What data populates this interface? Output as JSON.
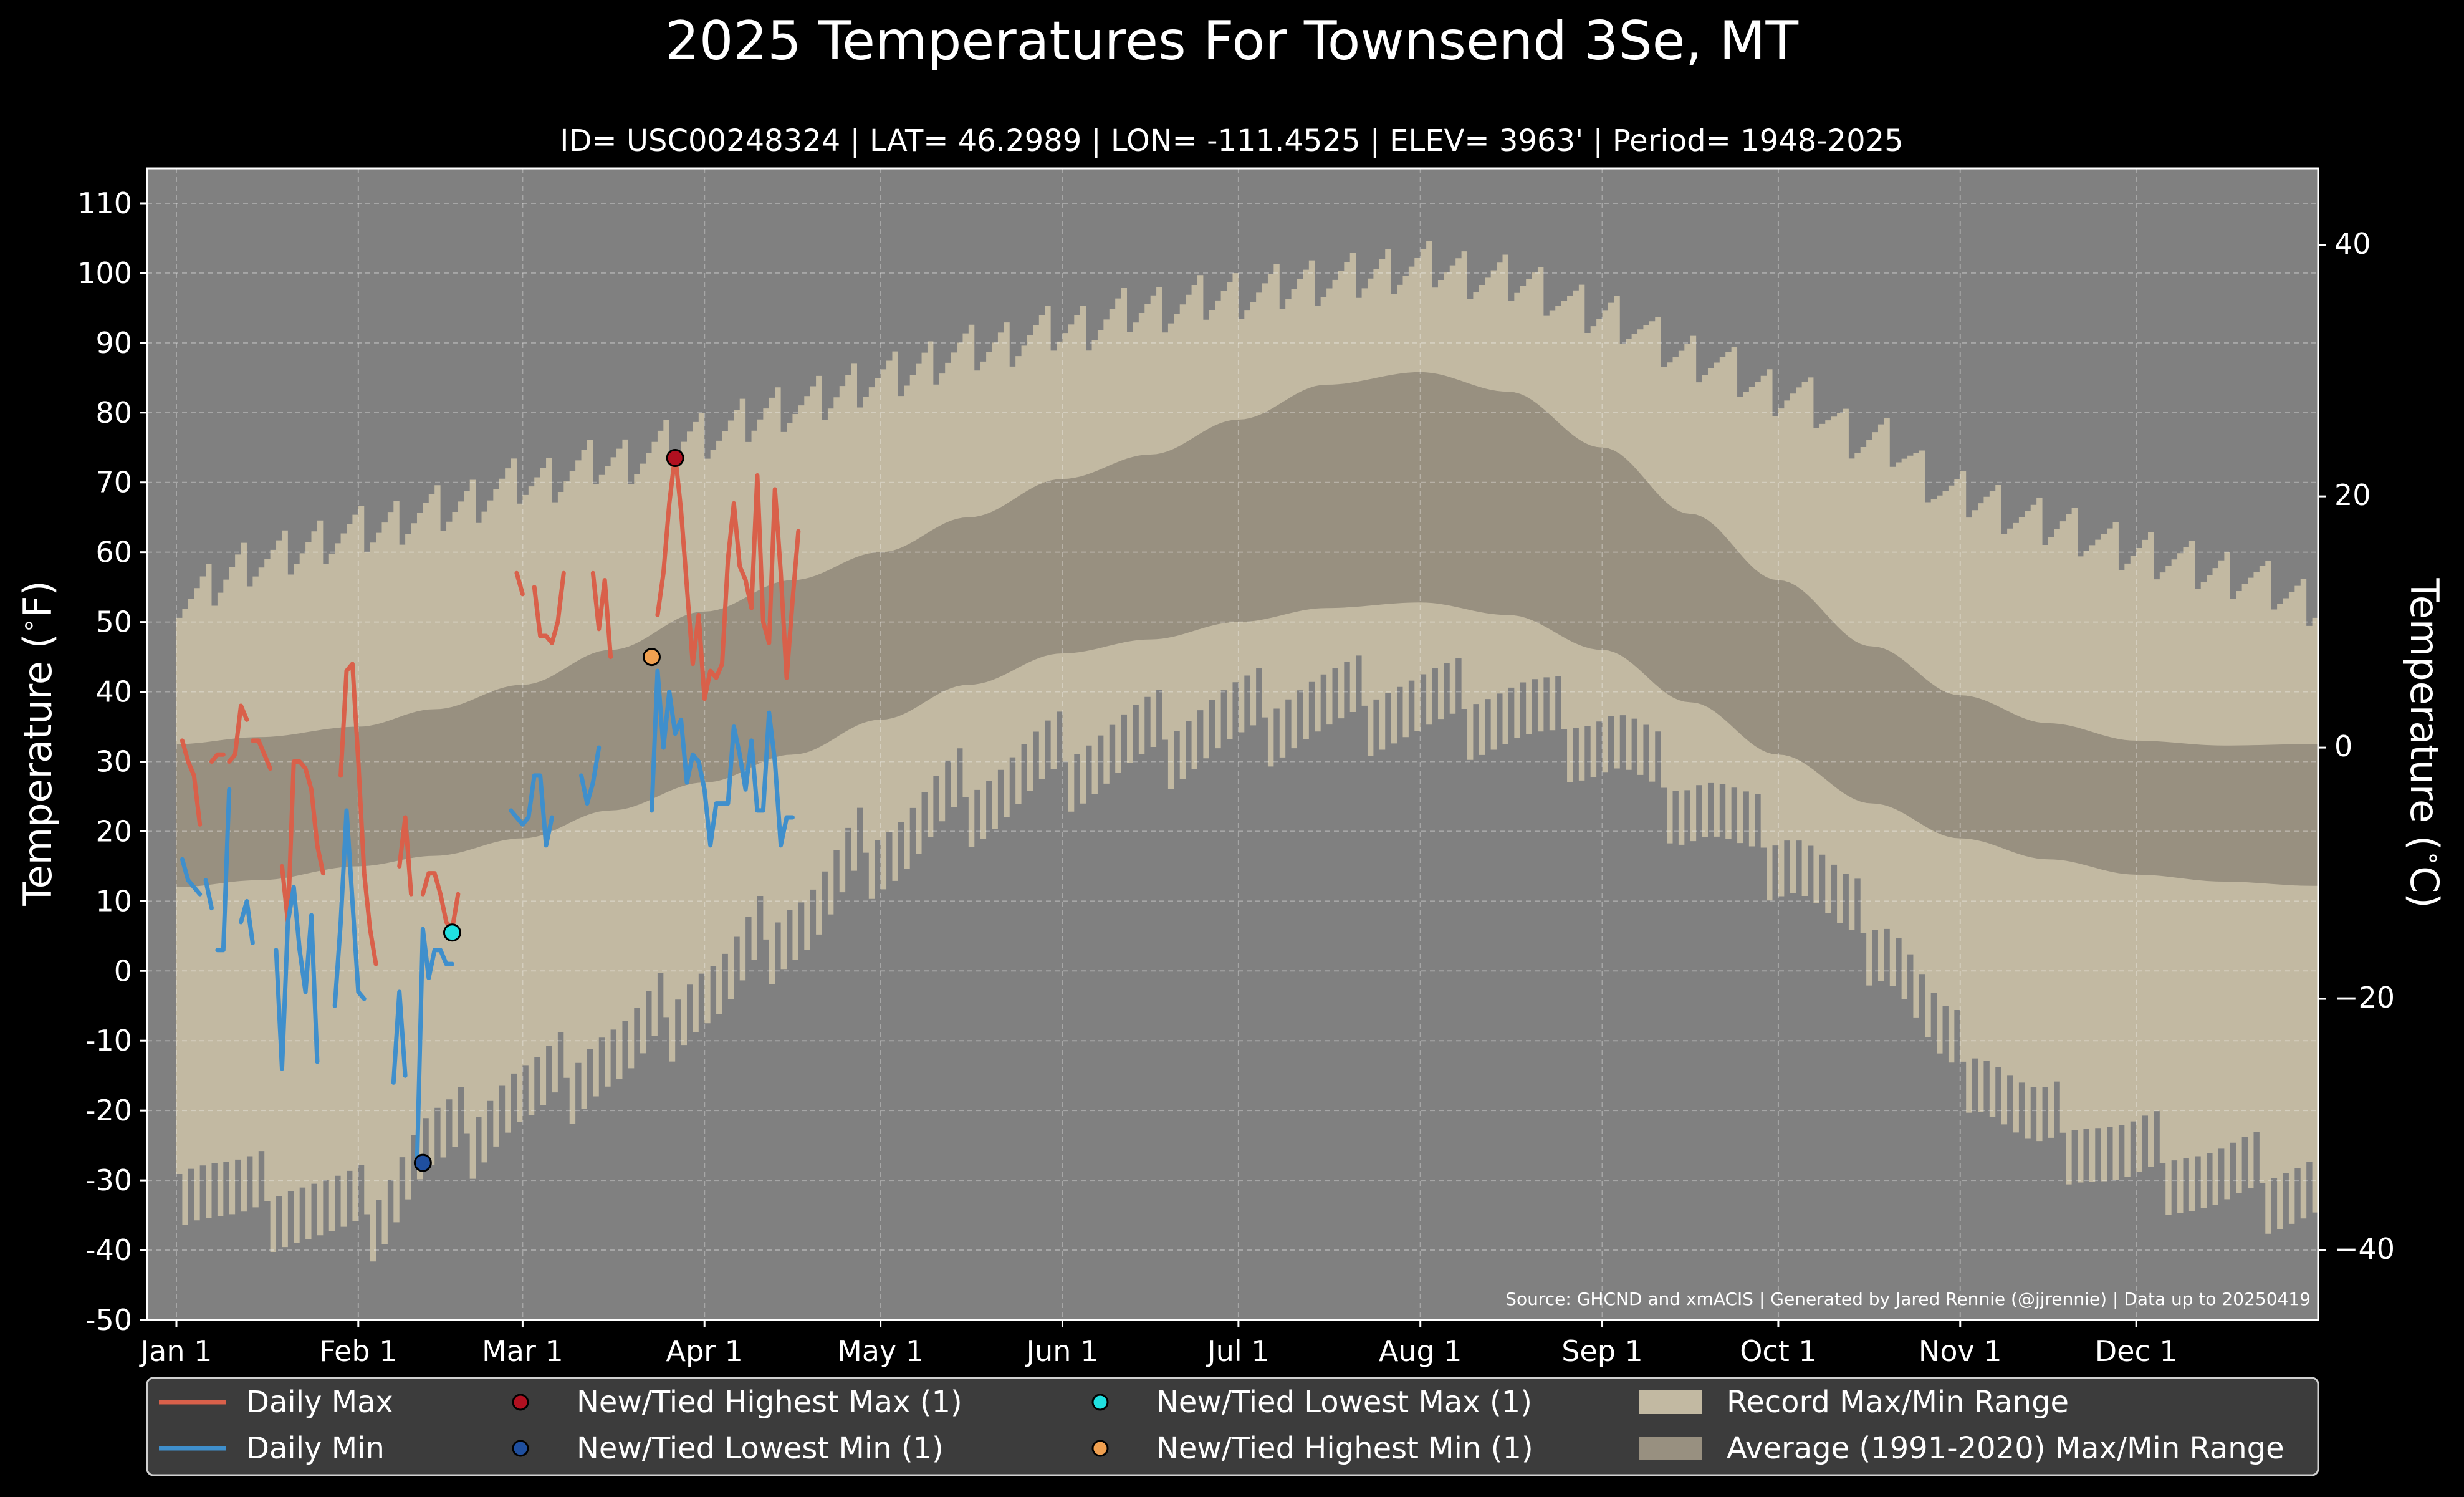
{
  "title": "2025 Temperatures For Townsend 3Se, MT",
  "subtitle": "ID= USC00248324 | LAT= 46.2989 | LON= -111.4525 | ELEV= 3963' | Period= 1948-2025",
  "source": "Source: GHCND and xmACIS | Generated by Jared Rennie (@jjrennie) | Data up to 20250419",
  "colors": {
    "background": "#000000",
    "plot_bg": "#808080",
    "record_band": "#c2b9a2",
    "normal_band": "#989080",
    "daily_max": "#d9604a",
    "daily_min": "#3f8fcc",
    "highest_max": "#b01020",
    "lowest_min": "#1f4f9f",
    "lowest_max": "#20e0e0",
    "highest_min": "#f0a050",
    "legend_bg": "#3c3c3c"
  },
  "chart_data": {
    "type": "line",
    "xlabel": "",
    "ylabel": "Temperature ($^\\circ$F)",
    "ylabel_right": "Temperature ($^\\circ$C)",
    "ylim": [
      -50,
      115
    ],
    "xlim": [
      1,
      365
    ],
    "yticks": [
      -50,
      -40,
      -30,
      -20,
      -10,
      0,
      10,
      20,
      30,
      40,
      50,
      60,
      70,
      80,
      90,
      100,
      110
    ],
    "yticks_right": [
      -40,
      -20,
      0,
      20,
      40
    ],
    "xticks": [
      {
        "label": "Jan 1",
        "day": 1
      },
      {
        "label": "Feb 1",
        "day": 32
      },
      {
        "label": "Mar 1",
        "day": 60
      },
      {
        "label": "Apr 1",
        "day": 91
      },
      {
        "label": "May 1",
        "day": 121
      },
      {
        "label": "Jun 1",
        "day": 152
      },
      {
        "label": "Jul 1",
        "day": 182
      },
      {
        "label": "Aug 1",
        "day": 213
      },
      {
        "label": "Sep 1",
        "day": 244
      },
      {
        "label": "Oct 1",
        "day": 274
      },
      {
        "label": "Nov 1",
        "day": 305
      },
      {
        "label": "Dec 1",
        "day": 335
      }
    ],
    "grid": true,
    "legend_position": "bottom",
    "record_max_anchors": [
      [
        1,
        53
      ],
      [
        15,
        59
      ],
      [
        32,
        63
      ],
      [
        45,
        66
      ],
      [
        60,
        70
      ],
      [
        75,
        73
      ],
      [
        91,
        77
      ],
      [
        106,
        81
      ],
      [
        121,
        85
      ],
      [
        136,
        89
      ],
      [
        152,
        92
      ],
      [
        167,
        95
      ],
      [
        182,
        97
      ],
      [
        197,
        99
      ],
      [
        213,
        101
      ],
      [
        228,
        99
      ],
      [
        244,
        94
      ],
      [
        259,
        88
      ],
      [
        274,
        83
      ],
      [
        290,
        76
      ],
      [
        305,
        68
      ],
      [
        320,
        64
      ],
      [
        335,
        60
      ],
      [
        350,
        57
      ],
      [
        365,
        53
      ]
    ],
    "record_min_anchors": [
      [
        1,
        -30
      ],
      [
        15,
        -33
      ],
      [
        32,
        -35
      ],
      [
        45,
        -25
      ],
      [
        60,
        -18
      ],
      [
        75,
        -12
      ],
      [
        91,
        -3
      ],
      [
        106,
        7
      ],
      [
        121,
        18
      ],
      [
        136,
        25
      ],
      [
        152,
        30
      ],
      [
        167,
        33
      ],
      [
        182,
        36
      ],
      [
        197,
        38
      ],
      [
        213,
        38
      ],
      [
        228,
        37
      ],
      [
        244,
        33
      ],
      [
        259,
        24
      ],
      [
        274,
        17
      ],
      [
        290,
        5
      ],
      [
        305,
        -13
      ],
      [
        320,
        -23
      ],
      [
        335,
        -27
      ],
      [
        350,
        -30
      ],
      [
        365,
        -31
      ]
    ],
    "normal_max_anchors": [
      [
        1,
        32.5
      ],
      [
        15,
        33.5
      ],
      [
        32,
        35
      ],
      [
        45,
        37.5
      ],
      [
        60,
        41
      ],
      [
        75,
        46
      ],
      [
        91,
        51.5
      ],
      [
        106,
        56
      ],
      [
        121,
        60
      ],
      [
        136,
        65
      ],
      [
        152,
        70.5
      ],
      [
        167,
        74
      ],
      [
        182,
        79
      ],
      [
        197,
        84
      ],
      [
        213,
        85.8
      ],
      [
        228,
        83
      ],
      [
        244,
        75
      ],
      [
        259,
        65.5
      ],
      [
        274,
        56
      ],
      [
        290,
        46.5
      ],
      [
        305,
        39.5
      ],
      [
        320,
        35.5
      ],
      [
        335,
        33
      ],
      [
        350,
        32.3
      ],
      [
        365,
        32.5
      ]
    ],
    "normal_min_anchors": [
      [
        1,
        12
      ],
      [
        15,
        13
      ],
      [
        32,
        15
      ],
      [
        45,
        16.5
      ],
      [
        60,
        19
      ],
      [
        75,
        23
      ],
      [
        91,
        27
      ],
      [
        106,
        31
      ],
      [
        121,
        36
      ],
      [
        136,
        41
      ],
      [
        152,
        45.5
      ],
      [
        167,
        47.5
      ],
      [
        182,
        50
      ],
      [
        197,
        52
      ],
      [
        213,
        52.8
      ],
      [
        228,
        51
      ],
      [
        244,
        46
      ],
      [
        259,
        38.5
      ],
      [
        274,
        31
      ],
      [
        290,
        24
      ],
      [
        305,
        19
      ],
      [
        320,
        16
      ],
      [
        335,
        13.8
      ],
      [
        350,
        12.8
      ],
      [
        365,
        12.2
      ]
    ],
    "series": [
      {
        "name": "Daily Max",
        "values": [
          [
            2,
            33
          ],
          [
            3,
            30
          ],
          [
            4,
            28
          ],
          [
            5,
            21
          ],
          [
            null,
            null
          ],
          [
            7,
            30
          ],
          [
            8,
            31
          ],
          [
            9,
            31
          ],
          [
            null,
            null
          ],
          [
            10,
            30
          ],
          [
            11,
            31
          ],
          [
            12,
            38
          ],
          [
            13,
            36
          ],
          [
            null,
            null
          ],
          [
            14,
            33
          ],
          [
            15,
            33
          ],
          [
            16,
            31
          ],
          [
            17,
            29
          ],
          [
            null,
            null
          ],
          [
            19,
            15
          ],
          [
            20,
            7
          ],
          [
            21,
            30
          ],
          [
            22,
            30
          ],
          [
            23,
            29
          ],
          [
            24,
            26
          ],
          [
            25,
            18
          ],
          [
            26,
            14
          ],
          [
            null,
            null
          ],
          [
            29,
            28
          ],
          [
            30,
            43
          ],
          [
            31,
            44
          ],
          [
            32,
            30
          ],
          [
            33,
            14
          ],
          [
            34,
            6
          ],
          [
            35,
            1
          ],
          [
            null,
            null
          ],
          [
            39,
            15
          ],
          [
            40,
            22
          ],
          [
            41,
            11
          ],
          [
            null,
            null
          ],
          [
            43,
            11
          ],
          [
            44,
            14
          ],
          [
            45,
            14
          ],
          [
            46,
            11
          ],
          [
            47,
            7
          ],
          [
            48,
            6
          ],
          [
            49,
            11
          ],
          [
            null,
            null
          ],
          [
            59,
            57
          ],
          [
            60,
            54
          ],
          [
            null,
            null
          ],
          [
            62,
            55
          ],
          [
            63,
            48
          ],
          [
            64,
            48
          ],
          [
            65,
            47
          ],
          [
            66,
            50
          ],
          [
            67,
            57
          ],
          [
            null,
            null
          ],
          [
            72,
            57
          ],
          [
            73,
            49
          ],
          [
            74,
            56
          ],
          [
            75,
            45
          ],
          [
            null,
            null
          ],
          [
            83,
            51
          ],
          [
            84,
            57
          ],
          [
            85,
            67
          ],
          [
            86,
            74
          ],
          [
            87,
            66
          ],
          [
            88,
            55
          ],
          [
            89,
            44
          ],
          [
            90,
            51
          ],
          [
            91,
            39
          ],
          [
            92,
            43
          ],
          [
            93,
            42
          ],
          [
            94,
            44
          ],
          [
            95,
            59
          ],
          [
            96,
            67
          ],
          [
            97,
            58
          ],
          [
            98,
            56
          ],
          [
            99,
            52
          ],
          [
            100,
            71
          ],
          [
            101,
            50
          ],
          [
            102,
            47
          ],
          [
            103,
            69
          ],
          [
            104,
            57
          ],
          [
            105,
            42
          ],
          [
            106,
            53
          ],
          [
            107,
            63
          ]
        ]
      },
      {
        "name": "Daily Min",
        "values": [
          [
            2,
            16
          ],
          [
            3,
            13
          ],
          [
            4,
            12
          ],
          [
            5,
            11
          ],
          [
            null,
            null
          ],
          [
            6,
            13
          ],
          [
            7,
            9
          ],
          [
            null,
            null
          ],
          [
            8,
            3
          ],
          [
            9,
            3
          ],
          [
            10,
            26
          ],
          [
            null,
            null
          ],
          [
            12,
            7
          ],
          [
            13,
            10
          ],
          [
            14,
            4
          ],
          [
            null,
            null
          ],
          [
            18,
            3
          ],
          [
            19,
            -14
          ],
          [
            20,
            7
          ],
          [
            21,
            12
          ],
          [
            22,
            3
          ],
          [
            23,
            -3
          ],
          [
            24,
            8
          ],
          [
            25,
            -13
          ],
          [
            null,
            null
          ],
          [
            28,
            -5
          ],
          [
            29,
            7
          ],
          [
            30,
            23
          ],
          [
            31,
            10
          ],
          [
            32,
            -3
          ],
          [
            33,
            -4
          ],
          [
            null,
            null
          ],
          [
            38,
            -16
          ],
          [
            39,
            -3
          ],
          [
            40,
            -15
          ],
          [
            null,
            null
          ],
          [
            42,
            -28
          ],
          [
            43,
            6
          ],
          [
            44,
            -1
          ],
          [
            45,
            3
          ],
          [
            46,
            3
          ],
          [
            47,
            1
          ],
          [
            48,
            1
          ],
          [
            null,
            null
          ],
          [
            58,
            23
          ],
          [
            59,
            22
          ],
          [
            60,
            21
          ],
          [
            61,
            22
          ],
          [
            62,
            28
          ],
          [
            63,
            28
          ],
          [
            64,
            18
          ],
          [
            65,
            22
          ],
          [
            null,
            null
          ],
          [
            70,
            28
          ],
          [
            71,
            24
          ],
          [
            72,
            27
          ],
          [
            73,
            32
          ],
          [
            null,
            null
          ],
          [
            82,
            23
          ],
          [
            83,
            43
          ],
          [
            84,
            32
          ],
          [
            85,
            40
          ],
          [
            86,
            34
          ],
          [
            87,
            36
          ],
          [
            88,
            27
          ],
          [
            89,
            31
          ],
          [
            90,
            30
          ],
          [
            91,
            26
          ],
          [
            92,
            18
          ],
          [
            93,
            24
          ],
          [
            94,
            24
          ],
          [
            95,
            24
          ],
          [
            96,
            35
          ],
          [
            97,
            31
          ],
          [
            98,
            26
          ],
          [
            99,
            33
          ],
          [
            100,
            23
          ],
          [
            101,
            23
          ],
          [
            102,
            37
          ],
          [
            103,
            30
          ],
          [
            104,
            18
          ],
          [
            105,
            22
          ],
          [
            106,
            22
          ]
        ]
      },
      {
        "name": "New/Tied Highest Max (1)",
        "type": "scatter",
        "values": [
          [
            86,
            73.5
          ]
        ]
      },
      {
        "name": "New/Tied Lowest Min (1)",
        "type": "scatter",
        "values": [
          [
            43,
            -27.5
          ]
        ]
      },
      {
        "name": "New/Tied Lowest Max (1)",
        "type": "scatter",
        "values": [
          [
            48,
            5.5
          ]
        ]
      },
      {
        "name": "New/Tied Highest Min (1)",
        "type": "scatter",
        "values": [
          [
            82,
            45
          ]
        ]
      },
      {
        "name": "Record Max/Min Range",
        "type": "area"
      },
      {
        "name": "Average (1991-2020) Max/Min Range",
        "type": "area"
      }
    ]
  }
}
